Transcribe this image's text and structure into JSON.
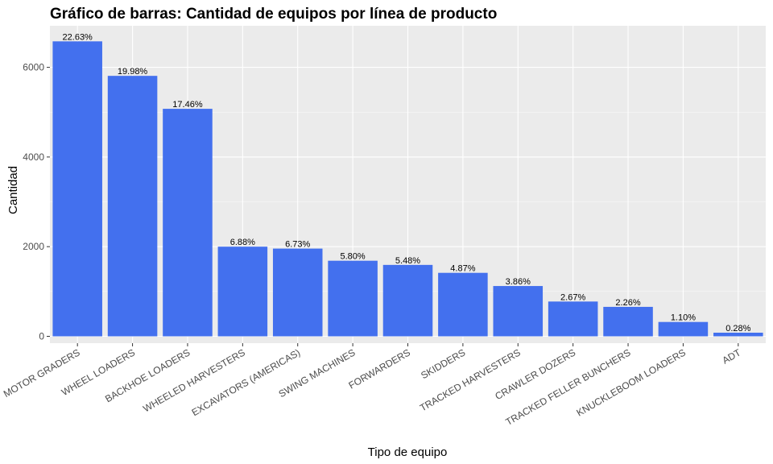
{
  "chart_data": {
    "type": "bar",
    "title": "Gráfico de barras: Cantidad de equipos por línea de producto",
    "xlabel": "Tipo de equipo",
    "ylabel": "Cantidad",
    "ylim": [
      0,
      6800
    ],
    "yticks": [
      0,
      2000,
      4000,
      6000
    ],
    "grid": true,
    "legend": "none",
    "colors": {
      "bar": "#4370ee",
      "panel": "#ebebeb"
    },
    "categories": [
      "MOTOR GRADERS",
      "WHEEL LOADERS",
      "BACKHOE LOADERS",
      "WHEELED HARVESTERS",
      "EXCAVATORS (AMERICAS)",
      "SWING MACHINES",
      "FORWARDERS",
      "SKIDDERS",
      "TRACKED HARVESTERS",
      "CRAWLER DOZERS",
      "TRACKED FELLER BUNCHERS",
      "KNUCKLEBOOM LOADERS",
      "ADT"
    ],
    "values": [
      6580,
      5810,
      5075,
      2000,
      1957,
      1686,
      1593,
      1416,
      1122,
      776,
      657,
      320,
      81
    ],
    "labels": [
      "22.63%",
      "19.98%",
      "17.46%",
      "6.88%",
      "6.73%",
      "5.80%",
      "5.48%",
      "4.87%",
      "3.86%",
      "2.67%",
      "2.26%",
      "1.10%",
      "0.28%"
    ]
  }
}
